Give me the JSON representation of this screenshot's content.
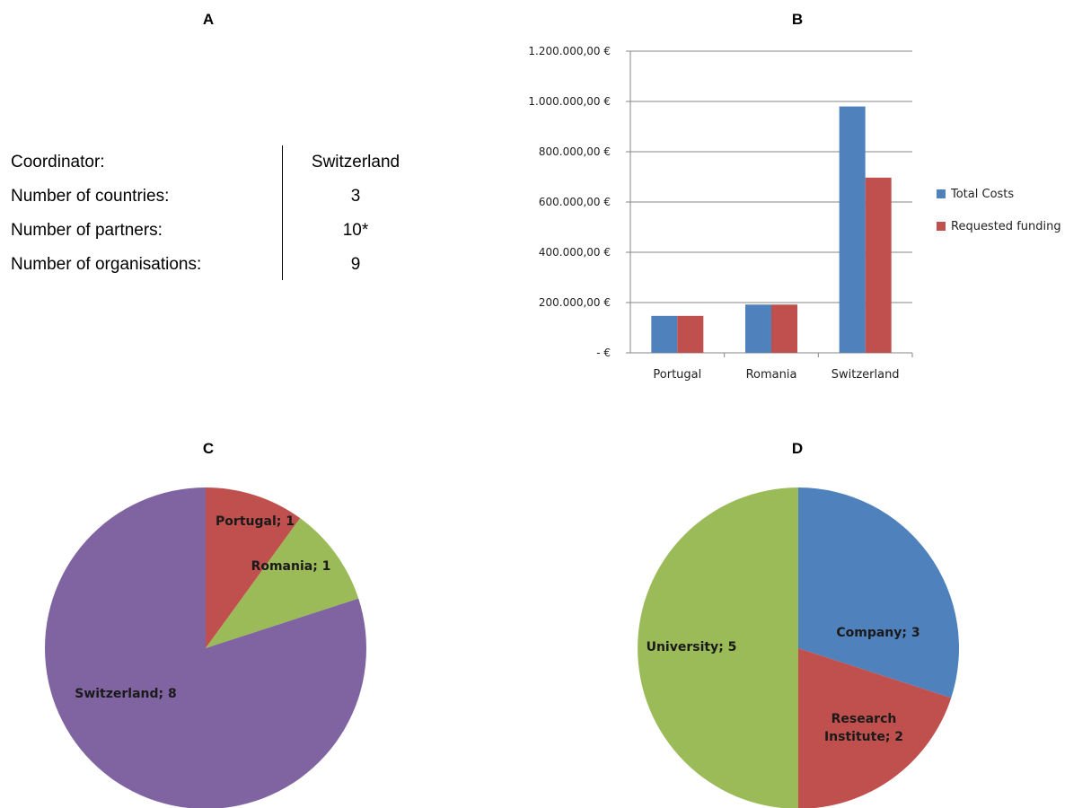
{
  "panels": {
    "a": {
      "letter": "A"
    },
    "b": {
      "letter": "B"
    },
    "c": {
      "letter": "C"
    },
    "d": {
      "letter": "D"
    }
  },
  "summary": {
    "rows": [
      {
        "label": "Coordinator:",
        "value": "Switzerland"
      },
      {
        "label": "Number of countries:",
        "value": "3"
      },
      {
        "label": "Number of partners:",
        "value": "10*"
      },
      {
        "label": "Number of organisations:",
        "value": "9"
      }
    ]
  },
  "chart_data": [
    {
      "type": "bar",
      "categories": [
        "Portugal",
        "Romania",
        "Switzerland"
      ],
      "series": [
        {
          "name": "Total Costs",
          "values": [
            147000,
            192000,
            980000
          ],
          "color": "#4F81BD"
        },
        {
          "name": "Requested funding",
          "values": [
            147000,
            192000,
            697000
          ],
          "color": "#C0504D"
        }
      ],
      "ylim": [
        0,
        1200000
      ],
      "yticks": [
        {
          "value": 0,
          "label": "-   €"
        },
        {
          "value": 200000,
          "label": "200.000,00 €"
        },
        {
          "value": 400000,
          "label": "400.000,00 €"
        },
        {
          "value": 600000,
          "label": "600.000,00 €"
        },
        {
          "value": 800000,
          "label": "800.000,00 €"
        },
        {
          "value": 1000000,
          "label": "1.000.000,00 €"
        },
        {
          "value": 1200000,
          "label": "1.200.000,00 €"
        }
      ],
      "grid": true,
      "legend": "right"
    },
    {
      "type": "pie",
      "slices": [
        {
          "label": "Portugal; 1",
          "value": 1,
          "color": "#C0504D"
        },
        {
          "label": "Romania; 1",
          "value": 1,
          "color": "#9BBB59"
        },
        {
          "label": "Switzerland; 8",
          "value": 8,
          "color": "#8064A2"
        }
      ]
    },
    {
      "type": "pie",
      "slices": [
        {
          "label": "Company; 3",
          "value": 3,
          "color": "#4F81BD"
        },
        {
          "label": "Research Institute; 2",
          "value": 2,
          "color": "#C0504D"
        },
        {
          "label": "University; 5",
          "value": 5,
          "color": "#9BBB59"
        }
      ]
    }
  ]
}
